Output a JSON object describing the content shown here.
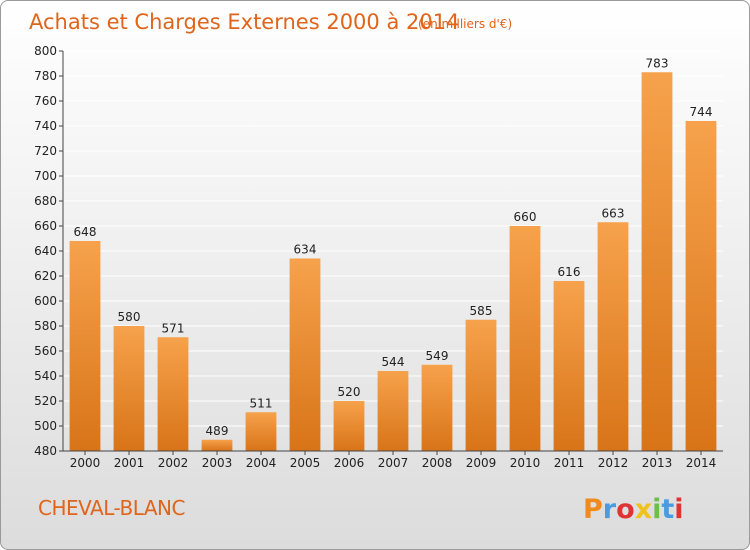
{
  "title": "Achats et Charges Externes 2000 à 2014",
  "subtitle": "(en milliers d'€)",
  "location": "CHEVAL-BLANC",
  "logo": {
    "text": "Proxiti",
    "colors": [
      "#f08a1c",
      "#4a9be0",
      "#e03434",
      "#f0c31c",
      "#6cc04a",
      "#4a9be0",
      "#e03434"
    ]
  },
  "colors": {
    "bar_light": "#f6a24c",
    "bar_dark": "#d87418",
    "title": "#e0641a"
  },
  "chart_data": {
    "type": "bar",
    "title": "Achats et Charges Externes 2000 à 2014",
    "subtitle": "(en milliers d'€)",
    "xlabel": "",
    "ylabel": "",
    "categories": [
      "2000",
      "2001",
      "2002",
      "2003",
      "2004",
      "2005",
      "2006",
      "2007",
      "2008",
      "2009",
      "2010",
      "2011",
      "2012",
      "2013",
      "2014"
    ],
    "values": [
      648,
      580,
      571,
      489,
      511,
      634,
      520,
      544,
      549,
      585,
      660,
      616,
      663,
      783,
      744
    ],
    "ylim": [
      480,
      800
    ],
    "yticks": [
      480,
      500,
      520,
      540,
      560,
      580,
      600,
      620,
      640,
      660,
      680,
      700,
      720,
      740,
      760,
      780,
      800
    ],
    "grid": true,
    "legend": "none"
  }
}
